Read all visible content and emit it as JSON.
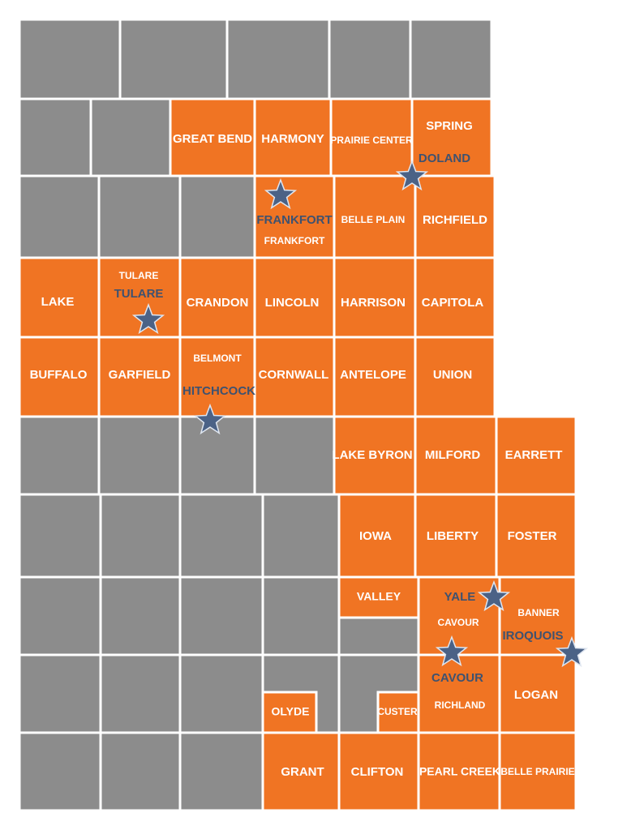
{
  "colors": {
    "orange": "#f07423",
    "gray": "#8c8c8c",
    "border": "#ffffff",
    "star": "#4b6286",
    "star_outline": "#dfe6f0",
    "city_text": "#3e5270",
    "label_text": "#ffffff"
  },
  "map": {
    "grid_cells": [
      {
        "row": 0,
        "col": 0,
        "state": "gray"
      },
      {
        "row": 0,
        "col": 1,
        "state": "gray"
      },
      {
        "row": 0,
        "col": 2,
        "state": "gray"
      },
      {
        "row": 0,
        "col": 3,
        "state": "gray"
      },
      {
        "row": 0,
        "col": 4,
        "state": "gray"
      },
      {
        "row": 1,
        "col": 0,
        "state": "gray"
      },
      {
        "row": 1,
        "col": 1,
        "state": "gray"
      },
      {
        "row": 1,
        "col": 2,
        "state": "orange"
      },
      {
        "row": 1,
        "col": 3,
        "state": "orange"
      },
      {
        "row": 1,
        "col": 4,
        "state": "orange"
      },
      {
        "row": 1,
        "col": 5,
        "state": "orange"
      },
      {
        "row": 2,
        "col": 0,
        "state": "gray"
      },
      {
        "row": 2,
        "col": 1,
        "state": "gray"
      },
      {
        "row": 2,
        "col": 2,
        "state": "gray"
      },
      {
        "row": 2,
        "col": 3,
        "state": "orange"
      },
      {
        "row": 2,
        "col": 4,
        "state": "orange"
      },
      {
        "row": 2,
        "col": 5,
        "state": "orange"
      },
      {
        "row": 3,
        "col": 0,
        "state": "orange"
      },
      {
        "row": 3,
        "col": 1,
        "state": "orange"
      },
      {
        "row": 3,
        "col": 2,
        "state": "orange"
      },
      {
        "row": 3,
        "col": 3,
        "state": "orange"
      },
      {
        "row": 3,
        "col": 4,
        "state": "orange"
      },
      {
        "row": 3,
        "col": 5,
        "state": "orange"
      },
      {
        "row": 4,
        "col": 0,
        "state": "orange"
      },
      {
        "row": 4,
        "col": 1,
        "state": "orange"
      },
      {
        "row": 4,
        "col": 2,
        "state": "orange"
      },
      {
        "row": 4,
        "col": 3,
        "state": "orange"
      },
      {
        "row": 4,
        "col": 4,
        "state": "orange"
      },
      {
        "row": 4,
        "col": 5,
        "state": "orange"
      },
      {
        "row": 5,
        "col": 0,
        "state": "gray"
      },
      {
        "row": 5,
        "col": 1,
        "state": "gray"
      },
      {
        "row": 5,
        "col": 2,
        "state": "gray"
      },
      {
        "row": 5,
        "col": 3,
        "state": "gray"
      },
      {
        "row": 5,
        "col": 4,
        "state": "orange"
      },
      {
        "row": 5,
        "col": 5,
        "state": "orange"
      },
      {
        "row": 5,
        "col": 6,
        "state": "orange"
      },
      {
        "row": 6,
        "col": 0,
        "state": "gray"
      },
      {
        "row": 6,
        "col": 1,
        "state": "gray"
      },
      {
        "row": 6,
        "col": 2,
        "state": "gray"
      },
      {
        "row": 6,
        "col": 3,
        "state": "gray"
      },
      {
        "row": 6,
        "col": 4,
        "state": "orange"
      },
      {
        "row": 6,
        "col": 5,
        "state": "orange"
      },
      {
        "row": 6,
        "col": 6,
        "state": "orange"
      },
      {
        "row": 7,
        "col": 0,
        "state": "gray"
      },
      {
        "row": 7,
        "col": 1,
        "state": "gray"
      },
      {
        "row": 7,
        "col": 2,
        "state": "gray"
      },
      {
        "row": 7,
        "col": 3,
        "state": "gray"
      },
      {
        "row": 7,
        "col": 4,
        "state": "mixed-valley"
      },
      {
        "row": 7,
        "col": 5,
        "state": "orange"
      },
      {
        "row": 7,
        "col": 6,
        "state": "orange"
      },
      {
        "row": 8,
        "col": 0,
        "state": "gray"
      },
      {
        "row": 8,
        "col": 1,
        "state": "gray"
      },
      {
        "row": 8,
        "col": 2,
        "state": "gray"
      },
      {
        "row": 8,
        "col": 3,
        "state": "mixed-olyde"
      },
      {
        "row": 8,
        "col": 4,
        "state": "mixed-custer"
      },
      {
        "row": 8,
        "col": 5,
        "state": "orange"
      },
      {
        "row": 8,
        "col": 6,
        "state": "orange"
      },
      {
        "row": 9,
        "col": 0,
        "state": "gray"
      },
      {
        "row": 9,
        "col": 1,
        "state": "gray"
      },
      {
        "row": 9,
        "col": 2,
        "state": "gray"
      },
      {
        "row": 9,
        "col": 3,
        "state": "orange"
      },
      {
        "row": 9,
        "col": 4,
        "state": "orange"
      },
      {
        "row": 9,
        "col": 5,
        "state": "orange"
      },
      {
        "row": 9,
        "col": 6,
        "state": "orange"
      }
    ],
    "township_labels": [
      {
        "id": "great-bend",
        "text": "GREAT BEND"
      },
      {
        "id": "harmony",
        "text": "HARMONY"
      },
      {
        "id": "prairie-center",
        "text": "PRAIRIE CENTER"
      },
      {
        "id": "spring",
        "text": "SPRING"
      },
      {
        "id": "belle-plain",
        "text": "BELLE PLAIN"
      },
      {
        "id": "richfield",
        "text": "RICHFIELD"
      },
      {
        "id": "frankfort-twp",
        "text": "FRANKFORT"
      },
      {
        "id": "tulare-twp",
        "text": "TULARE"
      },
      {
        "id": "lake",
        "text": "LAKE"
      },
      {
        "id": "crandon",
        "text": "CRANDON"
      },
      {
        "id": "lincoln",
        "text": "LINCOLN"
      },
      {
        "id": "harrison",
        "text": "HARRISON"
      },
      {
        "id": "capitola",
        "text": "CAPITOLA"
      },
      {
        "id": "buffalo",
        "text": "BUFFALO"
      },
      {
        "id": "garfield",
        "text": "GARFIELD"
      },
      {
        "id": "belmont",
        "text": "BELMONT"
      },
      {
        "id": "cornwall",
        "text": "CORNWALL"
      },
      {
        "id": "antelope",
        "text": "ANTELOPE"
      },
      {
        "id": "union",
        "text": "UNION"
      },
      {
        "id": "lake-byron",
        "text": "LAKE BYRON"
      },
      {
        "id": "milford",
        "text": "MILFORD"
      },
      {
        "id": "earrett",
        "text": "EARRETT"
      },
      {
        "id": "iowa",
        "text": "IOWA"
      },
      {
        "id": "liberty",
        "text": "LIBERTY"
      },
      {
        "id": "foster",
        "text": "FOSTER"
      },
      {
        "id": "valley",
        "text": "VALLEY"
      },
      {
        "id": "cavour-twp",
        "text": "CAVOUR"
      },
      {
        "id": "banner",
        "text": "BANNER"
      },
      {
        "id": "olyde",
        "text": "OLYDE"
      },
      {
        "id": "custer",
        "text": "CUSTER"
      },
      {
        "id": "richland",
        "text": "RICHLAND"
      },
      {
        "id": "logan",
        "text": "LOGAN"
      },
      {
        "id": "grant",
        "text": "GRANT"
      },
      {
        "id": "clifton",
        "text": "CLIFTON"
      },
      {
        "id": "pearl-creek",
        "text": "PEARL CREEK"
      },
      {
        "id": "belle-prairie",
        "text": "BELLE PRAIRIE"
      }
    ],
    "city_labels": [
      {
        "id": "doland",
        "text": "DOLAND"
      },
      {
        "id": "frankfort",
        "text": "FRANKFORT"
      },
      {
        "id": "tulare",
        "text": "TULARE"
      },
      {
        "id": "hitchcock",
        "text": "HITCHCOCK"
      },
      {
        "id": "yale",
        "text": "YALE"
      },
      {
        "id": "iroquois",
        "text": "IROQUOIS"
      },
      {
        "id": "cavour",
        "text": "CAVOUR"
      }
    ],
    "city_markers": [
      {
        "id": "doland",
        "icon": "star-icon"
      },
      {
        "id": "frankfort",
        "icon": "star-icon"
      },
      {
        "id": "tulare",
        "icon": "star-icon"
      },
      {
        "id": "hitchcock",
        "icon": "star-icon"
      },
      {
        "id": "yale",
        "icon": "star-icon"
      },
      {
        "id": "iroquois",
        "icon": "star-icon"
      },
      {
        "id": "cavour",
        "icon": "star-icon"
      }
    ]
  }
}
